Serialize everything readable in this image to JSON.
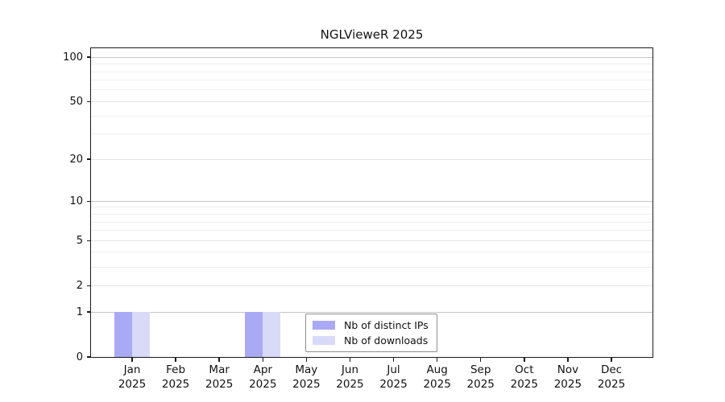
{
  "chart_data": {
    "type": "bar",
    "title": "NGLVieweR 2025",
    "categories": [
      {
        "month": "Jan",
        "year": "2025"
      },
      {
        "month": "Feb",
        "year": "2025"
      },
      {
        "month": "Mar",
        "year": "2025"
      },
      {
        "month": "Apr",
        "year": "2025"
      },
      {
        "month": "May",
        "year": "2025"
      },
      {
        "month": "Jun",
        "year": "2025"
      },
      {
        "month": "Jul",
        "year": "2025"
      },
      {
        "month": "Aug",
        "year": "2025"
      },
      {
        "month": "Sep",
        "year": "2025"
      },
      {
        "month": "Oct",
        "year": "2025"
      },
      {
        "month": "Nov",
        "year": "2025"
      },
      {
        "month": "Dec",
        "year": "2025"
      }
    ],
    "series": [
      {
        "name": "Nb of distinct IPs",
        "color": "#a9a9f5",
        "values": [
          1,
          0,
          0,
          1,
          0,
          0,
          0,
          0,
          0,
          0,
          0,
          0
        ]
      },
      {
        "name": "Nb of downloads",
        "color": "#d9d9f8",
        "values": [
          1,
          0,
          0,
          1,
          0,
          0,
          0,
          0,
          0,
          0,
          0,
          0
        ]
      }
    ],
    "y_ticks": [
      0,
      1,
      2,
      5,
      10,
      20,
      50,
      100
    ],
    "y_scale": "log1p",
    "ylim": [
      0,
      115
    ],
    "xlabel": "",
    "ylabel": "",
    "grid": "horizontal",
    "legend_position": "lower-center",
    "colors": {
      "axis": "#1a1a1a",
      "grid_major": "#c6c6c6",
      "grid_mid": "#e3e3e3",
      "grid_minor": "#efefef",
      "background": "#ffffff"
    }
  }
}
